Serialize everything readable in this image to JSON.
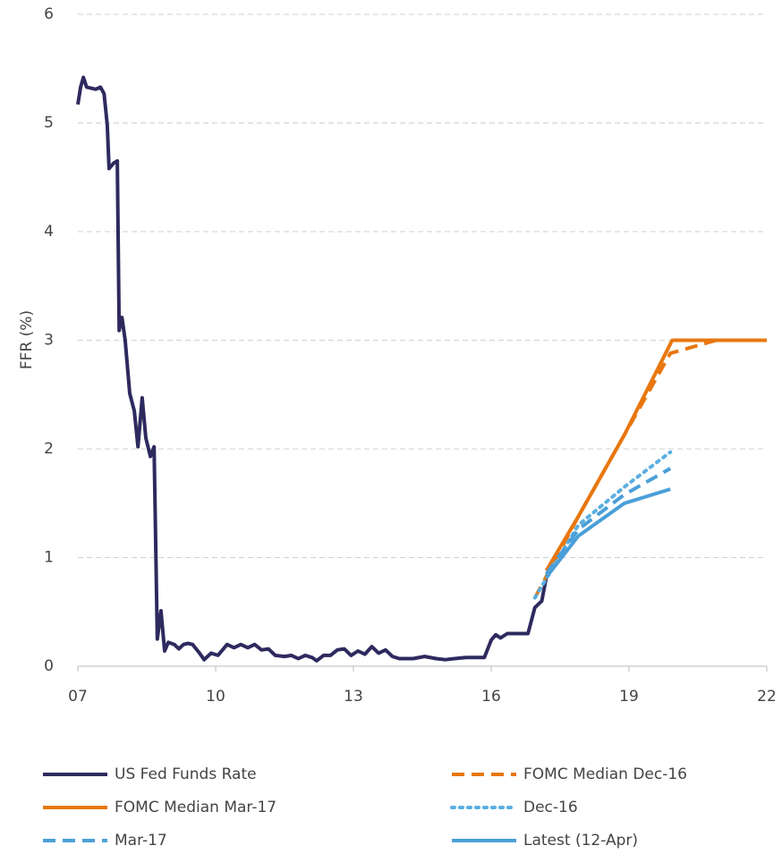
{
  "chart_data": {
    "type": "line",
    "ylabel": "FFR (%)",
    "xlim": [
      2007,
      2022
    ],
    "xticks": [
      {
        "value": 2007,
        "label": "07"
      },
      {
        "value": 2010,
        "label": "10"
      },
      {
        "value": 2013,
        "label": "13"
      },
      {
        "value": 2016,
        "label": "16"
      },
      {
        "value": 2019,
        "label": "19"
      },
      {
        "value": 2022,
        "label": "22"
      }
    ],
    "ylim": [
      0,
      6
    ],
    "yticks": [
      0,
      1,
      2,
      3,
      4,
      5,
      6
    ],
    "grid": true,
    "legend": "bottom",
    "series": [
      {
        "name": "US Fed Funds Rate",
        "color": "#2e2a5e",
        "dash": "solid",
        "x": [
          2007.0,
          2007.06,
          2007.12,
          2007.19,
          2007.39,
          2007.49,
          2007.57,
          2007.64,
          2007.68,
          2007.78,
          2007.86,
          2007.9,
          2007.96,
          2008.03,
          2008.13,
          2008.23,
          2008.31,
          2008.4,
          2008.48,
          2008.58,
          2008.66,
          2008.73,
          2008.81,
          2008.89,
          2008.97,
          2009.1,
          2009.2,
          2009.3,
          2009.4,
          2009.5,
          2009.65,
          2009.75,
          2009.9,
          2010.05,
          2010.15,
          2010.25,
          2010.4,
          2010.55,
          2010.7,
          2010.85,
          2011.0,
          2011.15,
          2011.3,
          2011.5,
          2011.65,
          2011.8,
          2011.95,
          2012.1,
          2012.2,
          2012.35,
          2012.5,
          2012.65,
          2012.8,
          2012.95,
          2013.1,
          2013.25,
          2013.4,
          2013.55,
          2013.7,
          2013.85,
          2014.0,
          2014.3,
          2014.55,
          2014.8,
          2015.0,
          2015.2,
          2015.45,
          2015.65,
          2015.85,
          2016.0,
          2016.1,
          2016.2,
          2016.35,
          2016.6,
          2016.8,
          2016.95,
          2017.1,
          2017.2
        ],
        "values": [
          5.17,
          5.33,
          5.42,
          5.33,
          5.31,
          5.33,
          5.27,
          4.98,
          4.58,
          4.63,
          4.65,
          3.09,
          3.21,
          3.0,
          2.51,
          2.35,
          2.02,
          2.47,
          2.1,
          1.93,
          2.02,
          0.25,
          0.51,
          0.14,
          0.22,
          0.2,
          0.16,
          0.2,
          0.21,
          0.2,
          0.12,
          0.06,
          0.12,
          0.1,
          0.15,
          0.2,
          0.17,
          0.2,
          0.17,
          0.2,
          0.15,
          0.16,
          0.1,
          0.09,
          0.1,
          0.07,
          0.1,
          0.08,
          0.05,
          0.1,
          0.1,
          0.15,
          0.16,
          0.1,
          0.14,
          0.11,
          0.18,
          0.12,
          0.15,
          0.09,
          0.07,
          0.07,
          0.09,
          0.07,
          0.06,
          0.07,
          0.08,
          0.08,
          0.08,
          0.24,
          0.29,
          0.26,
          0.3,
          0.3,
          0.3,
          0.54,
          0.6,
          0.82
        ]
      },
      {
        "name": "FOMC Median Dec-16",
        "color": "#e8770f",
        "dash": "dashed",
        "x": [
          2016.95,
          2017.9,
          2018.9,
          2019.9,
          2020.9,
          2022.0
        ],
        "values": [
          0.63,
          1.38,
          2.13,
          2.88,
          3.0,
          3.0
        ]
      },
      {
        "name": "FOMC Median Mar-17",
        "color": "#e8770f",
        "dash": "solid",
        "x": [
          2017.2,
          2017.9,
          2018.9,
          2019.94,
          2022.0
        ],
        "values": [
          0.88,
          1.38,
          2.13,
          3.0,
          3.0
        ]
      },
      {
        "name": "Dec-16",
        "color": "#5aaee0",
        "dash": "dotted",
        "x": [
          2016.95,
          2017.9,
          2018.9,
          2019.9
        ],
        "values": [
          0.63,
          1.3,
          1.65,
          1.97
        ]
      },
      {
        "name": "Mar-17",
        "color": "#4a9fd8",
        "dash": "dashed",
        "x": [
          2017.2,
          2017.9,
          2018.9,
          2019.9
        ],
        "values": [
          0.85,
          1.26,
          1.58,
          1.82
        ]
      },
      {
        "name": "Latest (12-Apr)",
        "color": "#4a9fd8",
        "dash": "solid",
        "x": [
          2017.2,
          2017.9,
          2018.9,
          2019.9
        ],
        "values": [
          0.82,
          1.2,
          1.5,
          1.63
        ]
      }
    ]
  }
}
